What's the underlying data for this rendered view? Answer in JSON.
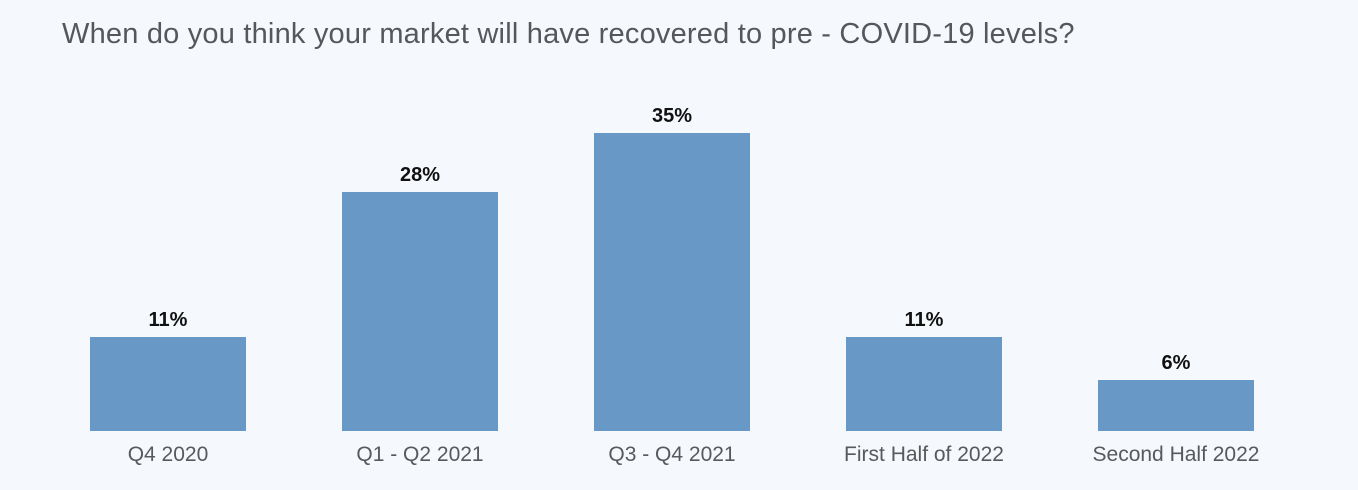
{
  "page": {
    "background_color": "#f5f8fc"
  },
  "chart_data": {
    "type": "bar",
    "title": "When do you think your market will have recovered to pre - COVID-19 levels?",
    "categories": [
      "Q4 2020",
      "Q1 - Q2 2021",
      "Q3 - Q4 2021",
      "First Half of 2022",
      "Second Half 2022"
    ],
    "values": [
      11,
      28,
      35,
      11,
      6
    ],
    "value_labels": [
      "11%",
      "28%",
      "35%",
      "11%",
      "6%"
    ],
    "xlabel": "",
    "ylabel": "",
    "ylim": [
      0,
      40
    ],
    "grid": false,
    "legend": false,
    "data_labels_position": "above-bars",
    "bar_color": "#6899c6",
    "title_color": "#56575b",
    "category_label_color": "#58595b",
    "value_label_color": "#111111"
  }
}
